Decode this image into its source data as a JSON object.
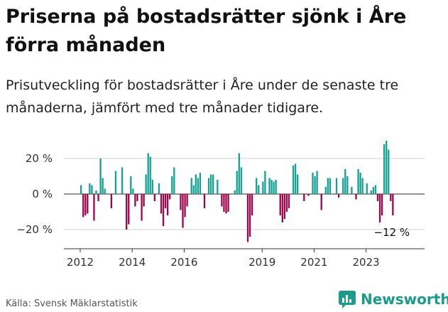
{
  "header": {
    "title": "Priserna på bostadsrätter sjönk i Åre förra månaden",
    "subtitle": "Prisutveckling för bostadsrätter i Åre under de senaste tre månaderna, jämfört med tre månader tidigare."
  },
  "footer": {
    "source": "Källa: Svensk Mäklarstatistik",
    "brand": "Newsworthy"
  },
  "colors": {
    "positive": "#15a192",
    "negative": "#a0054b",
    "grid": "#d0d0d0",
    "axis": "#333333",
    "brand": "#1a9b8c"
  },
  "chart_data": {
    "type": "bar",
    "title": "Priserna på bostadsrätter sjönk i Åre förra månaden",
    "xlabel": "",
    "ylabel": "",
    "unit": "%",
    "ylim": [
      -30,
      32
    ],
    "yticks": [
      20,
      0,
      -20
    ],
    "ytick_labels": [
      "20 %",
      "0 %",
      "−20 %"
    ],
    "xticks": [
      2012,
      2014,
      2016,
      2019,
      2021,
      2023
    ],
    "xtick_labels": [
      "2012",
      "2014",
      "2016",
      "2019",
      "2021",
      "2023"
    ],
    "start_year": 2012,
    "start_month": 1,
    "months_per_bar": 1,
    "values": [
      5,
      -13,
      -12,
      -11,
      6,
      5,
      -15,
      2,
      -4,
      20,
      9,
      3,
      0,
      0,
      -8,
      0,
      13,
      0,
      0,
      15,
      0,
      -20,
      -17,
      10,
      3,
      -7,
      -4,
      0,
      -15,
      -7,
      11,
      23,
      21,
      8,
      -4,
      0,
      6,
      -11,
      -18,
      -8,
      -12,
      -3,
      10,
      15,
      0,
      0,
      -9,
      -19,
      -13,
      -7,
      0,
      9,
      5,
      11,
      9,
      12,
      0,
      -8,
      0,
      9,
      11,
      11,
      0,
      8,
      0,
      -7,
      -10,
      -11,
      -10,
      0,
      0,
      2,
      13,
      23,
      15,
      0,
      0,
      -27,
      -24,
      -12,
      0,
      9,
      5,
      0,
      7,
      13,
      0,
      9,
      8,
      7,
      8,
      0,
      -12,
      -16,
      -14,
      -10,
      -8,
      0,
      16,
      17,
      11,
      0,
      0,
      -4,
      0,
      -1,
      0,
      12,
      10,
      13,
      0,
      -9,
      0,
      4,
      9,
      9,
      0,
      0,
      9,
      -2,
      0,
      9,
      14,
      10,
      0,
      4,
      0,
      -3,
      14,
      12,
      9,
      0,
      6,
      0,
      2,
      4,
      5,
      -4,
      -16,
      -12,
      28,
      30,
      25,
      -4,
      -12
    ],
    "annotations": [
      {
        "text": "−12 %",
        "at": "last-bar"
      }
    ]
  }
}
